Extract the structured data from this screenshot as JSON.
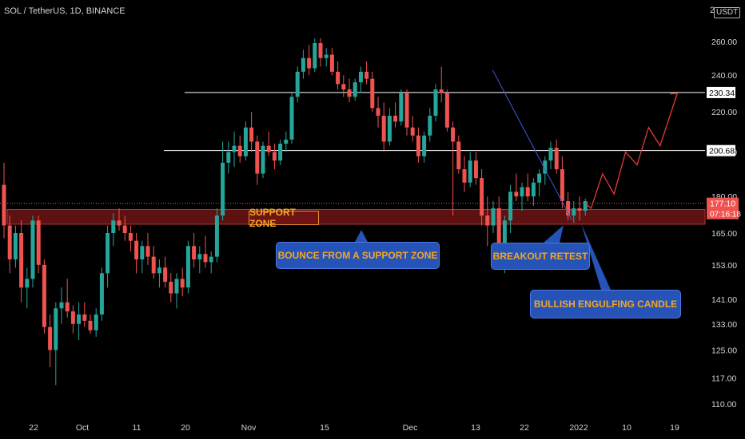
{
  "header": {
    "symbol_line": "SOL / TetherUS, 1D, BINANCE",
    "currency": "USDT",
    "top_axis_value": "2"
  },
  "chart_data": {
    "type": "candlestick",
    "title": "SOL / TetherUS, 1D, BINANCE",
    "ylabel": "USDT",
    "y_scale": "log",
    "ylim": [
      105,
      280
    ],
    "y_ticks": [
      110.0,
      117.0,
      125.0,
      133.0,
      141.0,
      153.0,
      165.0,
      180.0,
      200.0,
      220.0,
      240.0,
      260.0
    ],
    "y_tick_labels": [
      "110.00",
      "117.00",
      "125.00",
      "133.00",
      "141.00",
      "153.00",
      "165.00",
      "180.00",
      "200.00",
      "220.00",
      "240.00",
      "260.00"
    ],
    "x_tick_labels": [
      "22",
      "Oct",
      "11",
      "20",
      "Nov",
      "15",
      "Dec",
      "13",
      "22",
      "2022",
      "10",
      "19"
    ],
    "x_tick_dates": [
      "2021-09-22",
      "2021-10-01",
      "2021-10-11",
      "2021-10-20",
      "2021-11-01",
      "2021-11-15",
      "2021-12-01",
      "2021-12-13",
      "2021-12-22",
      "2022-01-01",
      "2022-01-10",
      "2022-01-19"
    ],
    "candles": [
      {
        "o": 185,
        "h": 195,
        "l": 163,
        "c": 168
      },
      {
        "o": 168,
        "h": 172,
        "l": 150,
        "c": 155
      },
      {
        "o": 155,
        "h": 168,
        "l": 152,
        "c": 165
      },
      {
        "o": 165,
        "h": 170,
        "l": 140,
        "c": 145
      },
      {
        "o": 145,
        "h": 152,
        "l": 138,
        "c": 148
      },
      {
        "o": 148,
        "h": 172,
        "l": 145,
        "c": 170
      },
      {
        "o": 170,
        "h": 172,
        "l": 150,
        "c": 153
      },
      {
        "o": 153,
        "h": 155,
        "l": 130,
        "c": 132
      },
      {
        "o": 132,
        "h": 136,
        "l": 120,
        "c": 125
      },
      {
        "o": 125,
        "h": 140,
        "l": 115,
        "c": 138
      },
      {
        "o": 138,
        "h": 145,
        "l": 133,
        "c": 140
      },
      {
        "o": 140,
        "h": 148,
        "l": 135,
        "c": 137
      },
      {
        "o": 137,
        "h": 139,
        "l": 130,
        "c": 133
      },
      {
        "o": 133,
        "h": 140,
        "l": 128,
        "c": 136
      },
      {
        "o": 136,
        "h": 140,
        "l": 132,
        "c": 134
      },
      {
        "o": 134,
        "h": 136,
        "l": 130,
        "c": 131
      },
      {
        "o": 131,
        "h": 138,
        "l": 129,
        "c": 136
      },
      {
        "o": 136,
        "h": 152,
        "l": 134,
        "c": 150
      },
      {
        "o": 150,
        "h": 168,
        "l": 145,
        "c": 165
      },
      {
        "o": 165,
        "h": 173,
        "l": 160,
        "c": 170
      },
      {
        "o": 170,
        "h": 175,
        "l": 166,
        "c": 168
      },
      {
        "o": 168,
        "h": 172,
        "l": 162,
        "c": 165
      },
      {
        "o": 165,
        "h": 168,
        "l": 158,
        "c": 162
      },
      {
        "o": 162,
        "h": 165,
        "l": 150,
        "c": 155
      },
      {
        "o": 155,
        "h": 162,
        "l": 150,
        "c": 160
      },
      {
        "o": 160,
        "h": 165,
        "l": 153,
        "c": 156
      },
      {
        "o": 156,
        "h": 160,
        "l": 148,
        "c": 150
      },
      {
        "o": 150,
        "h": 155,
        "l": 145,
        "c": 152
      },
      {
        "o": 152,
        "h": 156,
        "l": 145,
        "c": 147
      },
      {
        "o": 147,
        "h": 150,
        "l": 140,
        "c": 143
      },
      {
        "o": 143,
        "h": 150,
        "l": 138,
        "c": 148
      },
      {
        "o": 148,
        "h": 152,
        "l": 142,
        "c": 145
      },
      {
        "o": 145,
        "h": 162,
        "l": 143,
        "c": 160
      },
      {
        "o": 160,
        "h": 165,
        "l": 152,
        "c": 155
      },
      {
        "o": 155,
        "h": 160,
        "l": 150,
        "c": 157
      },
      {
        "o": 157,
        "h": 164,
        "l": 152,
        "c": 154
      },
      {
        "o": 154,
        "h": 158,
        "l": 150,
        "c": 156
      },
      {
        "o": 156,
        "h": 175,
        "l": 154,
        "c": 172
      },
      {
        "o": 172,
        "h": 205,
        "l": 170,
        "c": 195
      },
      {
        "o": 195,
        "h": 205,
        "l": 190,
        "c": 200
      },
      {
        "o": 200,
        "h": 210,
        "l": 193,
        "c": 203
      },
      {
        "o": 203,
        "h": 208,
        "l": 195,
        "c": 198
      },
      {
        "o": 198,
        "h": 215,
        "l": 196,
        "c": 212
      },
      {
        "o": 212,
        "h": 220,
        "l": 200,
        "c": 205
      },
      {
        "o": 205,
        "h": 208,
        "l": 185,
        "c": 190
      },
      {
        "o": 190,
        "h": 205,
        "l": 188,
        "c": 203
      },
      {
        "o": 203,
        "h": 210,
        "l": 198,
        "c": 200
      },
      {
        "o": 200,
        "h": 204,
        "l": 192,
        "c": 196
      },
      {
        "o": 196,
        "h": 206,
        "l": 194,
        "c": 204
      },
      {
        "o": 204,
        "h": 210,
        "l": 200,
        "c": 206
      },
      {
        "o": 206,
        "h": 230,
        "l": 204,
        "c": 228
      },
      {
        "o": 228,
        "h": 245,
        "l": 225,
        "c": 242
      },
      {
        "o": 242,
        "h": 255,
        "l": 238,
        "c": 250
      },
      {
        "o": 250,
        "h": 258,
        "l": 240,
        "c": 244
      },
      {
        "o": 244,
        "h": 262,
        "l": 242,
        "c": 259
      },
      {
        "o": 259,
        "h": 262,
        "l": 245,
        "c": 250
      },
      {
        "o": 250,
        "h": 256,
        "l": 245,
        "c": 252
      },
      {
        "o": 252,
        "h": 256,
        "l": 240,
        "c": 242
      },
      {
        "o": 242,
        "h": 248,
        "l": 232,
        "c": 235
      },
      {
        "o": 235,
        "h": 240,
        "l": 228,
        "c": 232
      },
      {
        "o": 232,
        "h": 238,
        "l": 225,
        "c": 228
      },
      {
        "o": 228,
        "h": 238,
        "l": 226,
        "c": 236
      },
      {
        "o": 236,
        "h": 245,
        "l": 230,
        "c": 242
      },
      {
        "o": 242,
        "h": 248,
        "l": 235,
        "c": 238
      },
      {
        "o": 238,
        "h": 242,
        "l": 220,
        "c": 222
      },
      {
        "o": 222,
        "h": 228,
        "l": 212,
        "c": 218
      },
      {
        "o": 218,
        "h": 225,
        "l": 200,
        "c": 205
      },
      {
        "o": 205,
        "h": 222,
        "l": 203,
        "c": 218
      },
      {
        "o": 218,
        "h": 225,
        "l": 212,
        "c": 215
      },
      {
        "o": 215,
        "h": 232,
        "l": 213,
        "c": 230
      },
      {
        "o": 230,
        "h": 232,
        "l": 208,
        "c": 212
      },
      {
        "o": 212,
        "h": 218,
        "l": 205,
        "c": 208
      },
      {
        "o": 208,
        "h": 212,
        "l": 195,
        "c": 198
      },
      {
        "o": 198,
        "h": 210,
        "l": 195,
        "c": 208
      },
      {
        "o": 208,
        "h": 222,
        "l": 205,
        "c": 218
      },
      {
        "o": 218,
        "h": 235,
        "l": 215,
        "c": 232
      },
      {
        "o": 232,
        "h": 245,
        "l": 225,
        "c": 230
      },
      {
        "o": 230,
        "h": 232,
        "l": 210,
        "c": 212
      },
      {
        "o": 212,
        "h": 215,
        "l": 172,
        "c": 205
      },
      {
        "o": 205,
        "h": 208,
        "l": 190,
        "c": 192
      },
      {
        "o": 192,
        "h": 198,
        "l": 182,
        "c": 186
      },
      {
        "o": 186,
        "h": 200,
        "l": 184,
        "c": 196
      },
      {
        "o": 196,
        "h": 200,
        "l": 185,
        "c": 188
      },
      {
        "o": 188,
        "h": 192,
        "l": 168,
        "c": 172
      },
      {
        "o": 172,
        "h": 180,
        "l": 160,
        "c": 168
      },
      {
        "o": 168,
        "h": 178,
        "l": 165,
        "c": 175
      },
      {
        "o": 175,
        "h": 180,
        "l": 152,
        "c": 158
      },
      {
        "o": 158,
        "h": 172,
        "l": 150,
        "c": 170
      },
      {
        "o": 170,
        "h": 185,
        "l": 165,
        "c": 182
      },
      {
        "o": 182,
        "h": 190,
        "l": 178,
        "c": 180
      },
      {
        "o": 180,
        "h": 186,
        "l": 174,
        "c": 184
      },
      {
        "o": 184,
        "h": 190,
        "l": 178,
        "c": 180
      },
      {
        "o": 180,
        "h": 188,
        "l": 176,
        "c": 186
      },
      {
        "o": 186,
        "h": 192,
        "l": 180,
        "c": 190
      },
      {
        "o": 190,
        "h": 198,
        "l": 185,
        "c": 196
      },
      {
        "o": 196,
        "h": 205,
        "l": 192,
        "c": 202
      },
      {
        "o": 202,
        "h": 206,
        "l": 190,
        "c": 192
      },
      {
        "o": 192,
        "h": 198,
        "l": 175,
        "c": 178
      },
      {
        "o": 178,
        "h": 182,
        "l": 170,
        "c": 172
      },
      {
        "o": 172,
        "h": 178,
        "l": 169,
        "c": 175
      },
      {
        "o": 175,
        "h": 180,
        "l": 170,
        "c": 174
      },
      {
        "o": 174,
        "h": 179,
        "l": 172,
        "c": 178
      }
    ],
    "projection": [
      [
        0,
        177
      ],
      [
        1,
        175
      ],
      [
        3,
        190
      ],
      [
        5,
        181
      ],
      [
        7,
        200
      ],
      [
        9,
        194
      ],
      [
        11,
        212
      ],
      [
        13,
        203
      ],
      [
        16,
        230
      ]
    ],
    "lines": {
      "horizontal": [
        230.34,
        200.68
      ],
      "support_zone": [
        168.5,
        174.5
      ],
      "current_price_dotted": 177.1,
      "trendline": [
        [
          -3.5,
          243
        ],
        [
          -0.5,
          170
        ]
      ]
    },
    "price_labels": {
      "level_1": "230.34",
      "level_2": "200.68",
      "last_price": "177.10",
      "countdown": "07:16:18"
    },
    "annotations": {
      "support_zone": "SUPPORT ZONE",
      "bounce": "BOUNCE FROM A SUPPORT ZONE",
      "breakout": "BREAKOUT RETEST",
      "engulfing": "BULLISH ENGULFING CANDLE"
    },
    "colors": {
      "up": "#26a69a",
      "down": "#ef5350",
      "background": "#000000",
      "support_fill": "#6e1414",
      "callout_bg": "#2553b8",
      "callout_text": "#f5a623",
      "projection": "#e53935",
      "trendline": "#3b5bdb"
    }
  }
}
